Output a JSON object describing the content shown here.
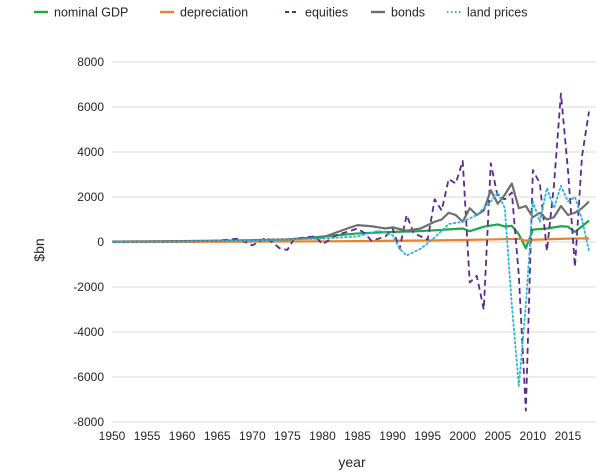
{
  "chart_data": {
    "type": "line",
    "xlabel": "year",
    "ylabel": "$bn",
    "xlim": [
      1950,
      2019
    ],
    "ylim": [
      -8000,
      8000
    ],
    "x_ticks": [
      1950,
      1955,
      1960,
      1965,
      1970,
      1975,
      1980,
      1985,
      1990,
      1995,
      2000,
      2005,
      2010,
      2015
    ],
    "y_ticks": [
      8000,
      6000,
      4000,
      2000,
      0,
      -2000,
      -4000,
      -6000,
      -8000
    ],
    "y_tick_labels": [
      "8000",
      "6000",
      "4000",
      "2000",
      "0",
      "-2000",
      "-4000",
      "-6000",
      "-8000"
    ],
    "grid": "horizontal",
    "legend_position": "top",
    "series": [
      {
        "name": "nominal GDP",
        "color": "#1aa84a",
        "style": "solid",
        "x": [
          1950,
          1955,
          1960,
          1965,
          1970,
          1975,
          1980,
          1985,
          1990,
          1993,
          1996,
          1998,
          2000,
          2001,
          2003,
          2005,
          2006,
          2007,
          2008,
          2009,
          2010,
          2012,
          2014,
          2015,
          2016,
          2018
        ],
        "values": [
          10,
          15,
          25,
          40,
          60,
          110,
          240,
          380,
          450,
          470,
          520,
          560,
          600,
          480,
          680,
          780,
          690,
          720,
          340,
          -280,
          550,
          600,
          700,
          680,
          450,
          950
        ]
      },
      {
        "name": "depreciation",
        "color": "#e8822e",
        "style": "solid",
        "x": [
          1950,
          1960,
          1970,
          1980,
          1985,
          1990,
          1995,
          2000,
          2005,
          2008,
          2009,
          2010,
          2015,
          2018
        ],
        "values": [
          0,
          5,
          15,
          30,
          40,
          55,
          70,
          90,
          120,
          140,
          60,
          100,
          150,
          160
        ]
      },
      {
        "name": "equities",
        "color": "#5b2a8e",
        "style": "dashed",
        "x": [
          1950,
          1960,
          1965,
          1968,
          1970,
          1972,
          1974,
          1975,
          1976,
          1979,
          1980,
          1982,
          1985,
          1986,
          1987,
          1989,
          1990,
          1991,
          1992,
          1993,
          1995,
          1996,
          1997,
          1998,
          1999,
          2000,
          2001,
          2002,
          2003,
          2004,
          2005,
          2006,
          2007,
          2008,
          2009,
          2010,
          2011,
          2012,
          2013,
          2014,
          2015,
          2016,
          2017,
          2018
        ],
        "values": [
          0,
          20,
          60,
          150,
          -150,
          200,
          -300,
          -350,
          150,
          250,
          -100,
          300,
          600,
          400,
          50,
          250,
          600,
          -300,
          1200,
          400,
          100,
          1900,
          1400,
          2800,
          2600,
          3600,
          -1800,
          -1500,
          -3000,
          3500,
          2000,
          1900,
          2200,
          -1500,
          -7500,
          3200,
          2600,
          -400,
          2500,
          6600,
          3200,
          -1100,
          3800,
          5800
        ]
      },
      {
        "name": "bonds",
        "color": "#6e6e6e",
        "style": "solid",
        "x": [
          1950,
          1960,
          1970,
          1975,
          1980,
          1984,
          1985,
          1987,
          1989,
          1990,
          1992,
          1994,
          1996,
          1997,
          1998,
          1999,
          2000,
          2001,
          2002,
          2003,
          2004,
          2005,
          2006,
          2007,
          2008,
          2009,
          2010,
          2011,
          2012,
          2013,
          2014,
          2015,
          2016,
          2017,
          2018
        ],
        "values": [
          20,
          40,
          80,
          120,
          200,
          650,
          750,
          700,
          600,
          650,
          500,
          600,
          900,
          1000,
          1300,
          1200,
          900,
          1500,
          1200,
          1400,
          2300,
          1700,
          2100,
          2600,
          1500,
          1600,
          1100,
          1300,
          1000,
          1100,
          1600,
          1200,
          1300,
          1500,
          1800
        ]
      },
      {
        "name": "land prices",
        "color": "#2bb5d9",
        "style": "dotted",
        "x": [
          1950,
          1960,
          1970,
          1980,
          1985,
          1988,
          1990,
          1991,
          1992,
          1994,
          1996,
          1998,
          2000,
          2002,
          2003,
          2004,
          2005,
          2006,
          2007,
          2008,
          2009,
          2010,
          2011,
          2012,
          2013,
          2014,
          2015,
          2016,
          2017,
          2018
        ],
        "values": [
          0,
          20,
          60,
          150,
          250,
          500,
          300,
          -300,
          -600,
          -300,
          200,
          800,
          900,
          1200,
          1500,
          1800,
          2200,
          1500,
          -2800,
          -6400,
          -2800,
          1800,
          900,
          2400,
          1500,
          2500,
          1800,
          2000,
          1000,
          -400
        ]
      }
    ]
  }
}
